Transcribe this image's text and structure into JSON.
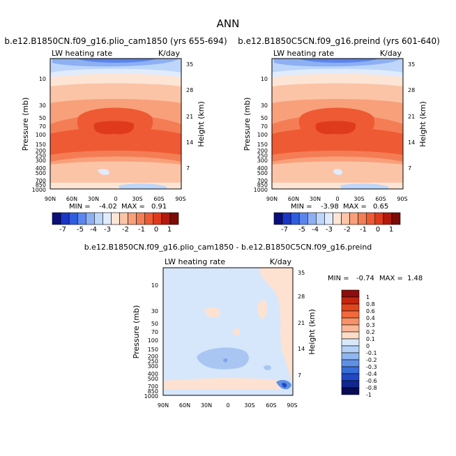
{
  "figure_title": "ANN",
  "chart_data": [
    {
      "type": "heatmap",
      "title": "b.e12.B1850CN.f09_g16.plio_cam1850 (yrs 655-694)",
      "variable": "LW heating rate",
      "units": "K/day",
      "ylabel": "Pressure (mb)",
      "ylabel_right": "Height (km)",
      "x_ticks": [
        "90N",
        "60N",
        "30N",
        "0",
        "30S",
        "60S",
        "90S"
      ],
      "y_ticks": [
        "10",
        "30",
        "50",
        "70",
        "100",
        "150",
        "200",
        "250",
        "300",
        "400",
        "500",
        "700",
        "850",
        "1000"
      ],
      "y_ticks_right": [
        "35",
        "28",
        "21",
        "14",
        "7"
      ],
      "min_label": "MIN =",
      "min": "-4.02",
      "max_label": "MAX =",
      "max": "0.91",
      "color_levels": [
        "-7",
        "-6",
        "-5",
        "-4",
        "-3.5",
        "-3",
        "-2.5",
        "-2",
        "-1.5",
        "-1",
        "-0.5",
        "0",
        "0.5",
        "1"
      ]
    },
    {
      "type": "heatmap",
      "title": "b.e12.B1850C5CN.f09_g16.preind (yrs 601-640)",
      "variable": "LW heating rate",
      "units": "K/day",
      "ylabel": "Pressure (mb)",
      "ylabel_right": "Height (km)",
      "x_ticks": [
        "90N",
        "60N",
        "30N",
        "0",
        "30S",
        "60S",
        "90S"
      ],
      "y_ticks": [
        "10",
        "30",
        "50",
        "70",
        "100",
        "150",
        "200",
        "250",
        "300",
        "400",
        "500",
        "700",
        "850",
        "1000"
      ],
      "y_ticks_right": [
        "35",
        "28",
        "21",
        "14",
        "7"
      ],
      "min_label": "MIN =",
      "min": "-3.98",
      "max_label": "MAX =",
      "max": "0.65",
      "color_levels": [
        "-7",
        "-6",
        "-5",
        "-4",
        "-3.5",
        "-3",
        "-2.5",
        "-2",
        "-1.5",
        "-1",
        "-0.5",
        "0",
        "0.5",
        "1"
      ]
    },
    {
      "type": "heatmap",
      "title": "b.e12.B1850CN.f09_g16.plio_cam1850 - b.e12.B1850C5CN.f09_g16.preind",
      "variable": "LW heating rate",
      "units": "K/day",
      "ylabel": "Pressure (mb)",
      "ylabel_right": "Height (km)",
      "x_ticks": [
        "90N",
        "60N",
        "30N",
        "0",
        "30S",
        "60S",
        "90S"
      ],
      "y_ticks": [
        "10",
        "30",
        "50",
        "70",
        "100",
        "150",
        "200",
        "250",
        "300",
        "400",
        "500",
        "700",
        "850",
        "1000"
      ],
      "y_ticks_right": [
        "35",
        "28",
        "21",
        "14",
        "7"
      ],
      "min_label": "MIN =",
      "min": "-0.74",
      "max_label": "MAX =",
      "max": "1.48",
      "legend_labels": [
        "1",
        "0.8",
        "0.6",
        "0.4",
        "0.3",
        "0.2",
        "0.1",
        "0",
        "-0.1",
        "-0.2",
        "-0.3",
        "-0.4",
        "-0.6",
        "-0.8",
        "-1"
      ]
    }
  ],
  "colorbar_labels": [
    "-7",
    "-5",
    "-4",
    "-3",
    "-2",
    "-1",
    "0",
    "1"
  ],
  "colors": {
    "top_palette": [
      "#0b0f7c",
      "#1a36c8",
      "#2f5de0",
      "#5a85ec",
      "#8db0f3",
      "#bdd6fa",
      "#e0ecfd",
      "#fde5d5",
      "#fbc4a6",
      "#f8a07a",
      "#f47d55",
      "#ee5a33",
      "#e03a1c",
      "#b31a0c",
      "#7d0a05"
    ],
    "diff_legend": [
      "#8c0d0b",
      "#c1260f",
      "#e2461e",
      "#f06a3d",
      "#f6916a",
      "#f9b89a",
      "#fcdcc8",
      "#d8e8fb",
      "#b5d1f6",
      "#8fb6ef",
      "#5f90e6",
      "#386ed8",
      "#2149c4",
      "#10278e",
      "#070c55"
    ],
    "diff_background": "#d6e7fb"
  }
}
